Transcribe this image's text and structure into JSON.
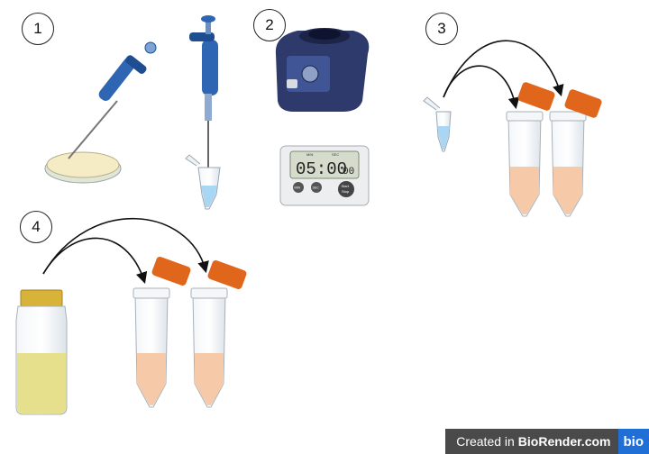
{
  "steps": [
    {
      "label": "1"
    },
    {
      "label": "2"
    },
    {
      "label": "3"
    },
    {
      "label": "4"
    }
  ],
  "timer": {
    "display": "05:00",
    "display_small": "00",
    "label_min": "MIN",
    "label_sec": "SEC",
    "btn_min": "MIN",
    "btn_sec": "SEC",
    "btn_start": "Start",
    "btn_stop": "Stop"
  },
  "watermark": {
    "prefix": "Created in",
    "brand": "BioRender.com",
    "logo": "bio"
  },
  "colors": {
    "pipette_blue": "#2f66b3",
    "cap_orange": "#e0661c",
    "tube_liquid": "#f6c9a8",
    "vial_liquid": "#e6df8c",
    "vortex_navy": "#2d3a6b"
  }
}
